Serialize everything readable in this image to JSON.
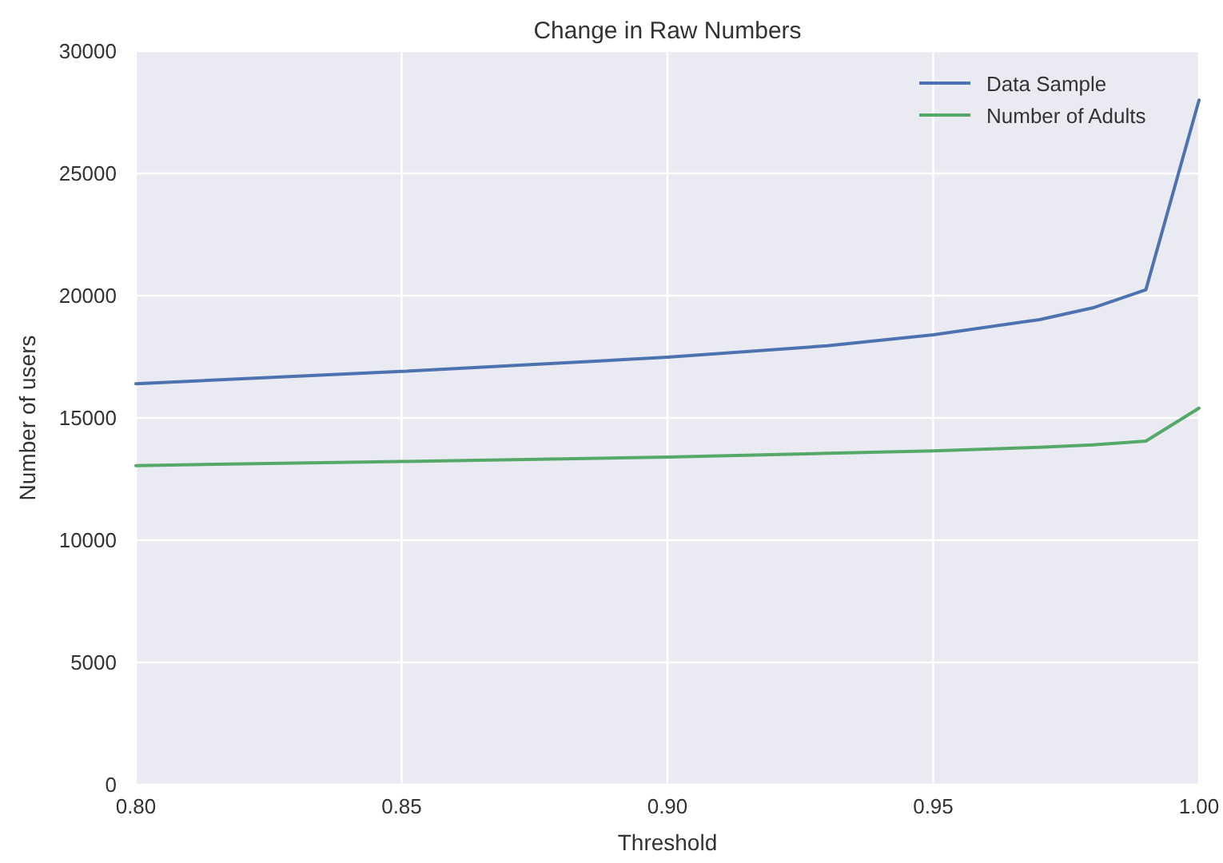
{
  "chart_data": {
    "type": "line",
    "title": "Change in Raw Numbers",
    "xlabel": "Threshold",
    "ylabel": "Number of users",
    "x": [
      0.8,
      0.85,
      0.9,
      0.93,
      0.95,
      0.97,
      0.98,
      0.99,
      1.0
    ],
    "series": [
      {
        "name": "Data Sample",
        "color": "#4c72b0",
        "values": [
          16400,
          16900,
          17480,
          17950,
          18400,
          19020,
          19500,
          20240,
          28000
        ]
      },
      {
        "name": "Number of Adults",
        "color": "#55a868",
        "values": [
          13050,
          13220,
          13400,
          13550,
          13650,
          13800,
          13900,
          14050,
          15400
        ]
      }
    ],
    "xlim": [
      0.8,
      1.0
    ],
    "xticks": [
      {
        "value": 0.8,
        "label": "0.80"
      },
      {
        "value": 0.85,
        "label": "0.85"
      },
      {
        "value": 0.9,
        "label": "0.90"
      },
      {
        "value": 0.95,
        "label": "0.95"
      },
      {
        "value": 1.0,
        "label": "1.00"
      }
    ],
    "ylim": [
      0,
      30000
    ],
    "yticks": [
      0,
      5000,
      10000,
      15000,
      20000,
      25000,
      30000
    ],
    "grid": true,
    "legend": "top right",
    "marker": "none",
    "line_style": "solid"
  }
}
